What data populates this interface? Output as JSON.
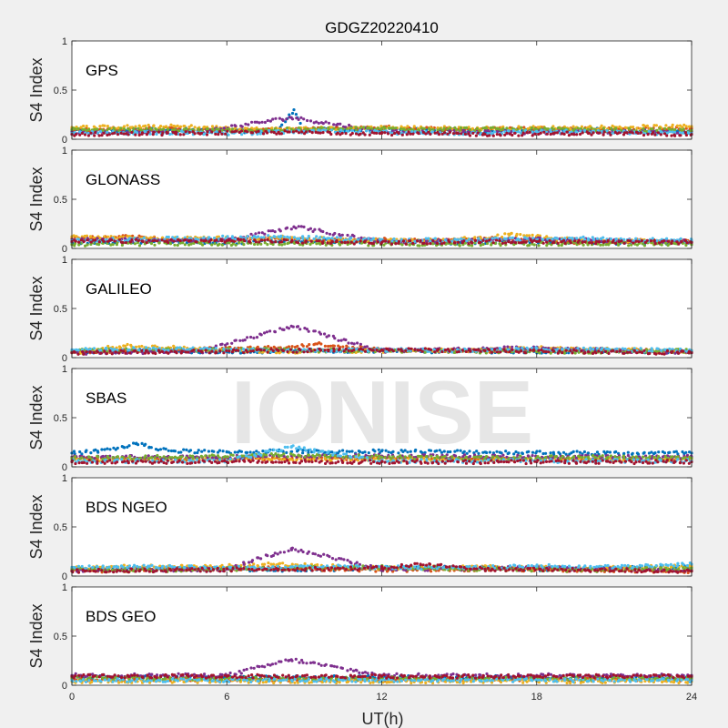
{
  "chart_data": {
    "type": "scatter",
    "title": "GDGZ20220410",
    "xlabel": "UT(h)",
    "ylabel": "S4 Index",
    "xlim": [
      0,
      24
    ],
    "ylim": [
      0,
      1
    ],
    "xticks": [
      "0",
      "6",
      "12",
      "18",
      "24"
    ],
    "yticks": [
      "0",
      "0.5",
      "1"
    ],
    "grid": false,
    "watermark": "IONISE",
    "colors": [
      "#0072bd",
      "#d95319",
      "#edb120",
      "#7e2f8e",
      "#77ac30",
      "#4dbeee",
      "#a2142f"
    ],
    "panels": [
      {
        "name": "GPS",
        "series": [
          {
            "x": [
              0,
              2,
              4,
              6,
              8,
              8.6,
              9,
              12,
              14,
              16,
              18,
              20,
              22,
              24
            ],
            "y": [
              0.08,
              0.09,
              0.1,
              0.08,
              0.09,
              0.3,
              0.1,
              0.09,
              0.1,
              0.08,
              0.09,
              0.1,
              0.08,
              0.08
            ]
          },
          {
            "x": [
              0,
              3,
              6,
              9,
              12,
              15,
              18,
              21,
              24
            ],
            "y": [
              0.1,
              0.11,
              0.09,
              0.1,
              0.12,
              0.1,
              0.11,
              0.1,
              0.11
            ]
          },
          {
            "x": [
              0,
              4,
              8,
              12,
              16,
              20,
              24
            ],
            "y": [
              0.12,
              0.13,
              0.1,
              0.12,
              0.11,
              0.12,
              0.13
            ]
          },
          {
            "x": [
              0,
              5,
              8.5,
              12,
              17,
              24
            ],
            "y": [
              0.07,
              0.08,
              0.22,
              0.08,
              0.07,
              0.08
            ]
          },
          {
            "x": [
              0,
              6,
              12,
              18,
              24
            ],
            "y": [
              0.1,
              0.09,
              0.11,
              0.1,
              0.09
            ]
          },
          {
            "x": [
              0,
              3,
              6,
              9,
              12,
              15,
              18,
              21,
              24
            ],
            "y": [
              0.06,
              0.07,
              0.06,
              0.08,
              0.07,
              0.06,
              0.08,
              0.07,
              0.06
            ]
          },
          {
            "x": [
              0,
              4,
              8,
              12,
              16,
              20,
              24
            ],
            "y": [
              0.05,
              0.06,
              0.07,
              0.06,
              0.05,
              0.06,
              0.05
            ]
          }
        ]
      },
      {
        "name": "GLONASS",
        "series": [
          {
            "x": [
              0,
              3,
              6,
              9,
              12,
              15,
              18,
              21,
              24
            ],
            "y": [
              0.06,
              0.07,
              0.06,
              0.08,
              0.07,
              0.06,
              0.07,
              0.06,
              0.06
            ]
          },
          {
            "x": [
              0,
              2,
              4,
              6,
              8,
              10,
              12,
              14,
              16,
              18,
              20,
              22,
              24
            ],
            "y": [
              0.1,
              0.12,
              0.09,
              0.08,
              0.1,
              0.08,
              0.09,
              0.08,
              0.1,
              0.09,
              0.06,
              0.08,
              0.07
            ]
          },
          {
            "x": [
              0,
              4,
              8,
              12,
              16,
              17,
              20,
              24
            ],
            "y": [
              0.12,
              0.1,
              0.11,
              0.08,
              0.1,
              0.15,
              0.08,
              0.07
            ]
          },
          {
            "x": [
              0,
              6,
              8.6,
              12,
              18,
              24
            ],
            "y": [
              0.09,
              0.08,
              0.22,
              0.07,
              0.09,
              0.07
            ]
          },
          {
            "x": [
              0,
              5,
              10,
              15,
              20,
              24
            ],
            "y": [
              0.04,
              0.05,
              0.05,
              0.04,
              0.05,
              0.04
            ]
          },
          {
            "x": [
              0,
              4,
              8,
              12,
              16,
              20,
              24
            ],
            "y": [
              0.08,
              0.1,
              0.12,
              0.08,
              0.09,
              0.1,
              0.08
            ]
          },
          {
            "x": [
              0,
              6,
              12,
              18,
              24
            ],
            "y": [
              0.07,
              0.08,
              0.06,
              0.07,
              0.06
            ]
          }
        ]
      },
      {
        "name": "GALILEO",
        "series": [
          {
            "x": [
              0,
              3,
              6,
              9,
              12,
              15,
              18,
              21,
              24
            ],
            "y": [
              0.06,
              0.07,
              0.06,
              0.07,
              0.07,
              0.06,
              0.06,
              0.07,
              0.06
            ]
          },
          {
            "x": [
              0,
              4,
              8,
              9.5,
              12,
              16,
              20,
              24
            ],
            "y": [
              0.06,
              0.08,
              0.1,
              0.14,
              0.08,
              0.07,
              0.08,
              0.06
            ]
          },
          {
            "x": [
              0,
              2,
              4,
              6,
              8,
              12,
              16,
              18,
              24
            ],
            "y": [
              0.05,
              0.12,
              0.1,
              0.08,
              0.06,
              0.07,
              0.08,
              0.1,
              0.06
            ]
          },
          {
            "x": [
              0,
              5,
              8.5,
              12,
              18,
              24
            ],
            "y": [
              0.05,
              0.06,
              0.32,
              0.07,
              0.1,
              0.05
            ]
          },
          {
            "x": [
              0,
              6,
              12,
              18,
              24
            ],
            "y": [
              0.07,
              0.08,
              0.07,
              0.06,
              0.07
            ]
          },
          {
            "x": [
              0,
              3,
              6,
              9,
              12,
              15,
              18,
              21,
              24
            ],
            "y": [
              0.08,
              0.09,
              0.08,
              0.07,
              0.08,
              0.07,
              0.09,
              0.08,
              0.07
            ]
          },
          {
            "x": [
              0,
              4,
              8,
              12,
              16,
              20,
              24
            ],
            "y": [
              0.05,
              0.06,
              0.07,
              0.08,
              0.07,
              0.06,
              0.05
            ]
          }
        ]
      },
      {
        "name": "SBAS",
        "series": [
          {
            "x": [
              0,
              1,
              2,
              2.5,
              3,
              4,
              6,
              8,
              10,
              12,
              16,
              20,
              24
            ],
            "y": [
              0.14,
              0.16,
              0.2,
              0.24,
              0.2,
              0.16,
              0.15,
              0.16,
              0.15,
              0.16,
              0.15,
              0.14,
              0.14
            ]
          },
          {
            "x": [
              0,
              6,
              12,
              18,
              24
            ],
            "y": [
              0.08,
              0.08,
              0.09,
              0.08,
              0.08
            ]
          },
          {
            "x": [
              0,
              6,
              12,
              18,
              24
            ],
            "y": [
              0.07,
              0.08,
              0.07,
              0.08,
              0.07
            ]
          },
          {
            "x": [
              0,
              6,
              12,
              18,
              24
            ],
            "y": [
              0.1,
              0.1,
              0.11,
              0.1,
              0.1
            ]
          },
          {
            "x": [
              0,
              4,
              8,
              12,
              16,
              20,
              24
            ],
            "y": [
              0.09,
              0.1,
              0.12,
              0.1,
              0.09,
              0.1,
              0.09
            ]
          },
          {
            "x": [
              0,
              6,
              8.5,
              12,
              18,
              24
            ],
            "y": [
              0.06,
              0.06,
              0.2,
              0.06,
              0.06,
              0.06
            ]
          },
          {
            "x": [
              0,
              6,
              12,
              18,
              24
            ],
            "y": [
              0.05,
              0.05,
              0.05,
              0.05,
              0.05
            ]
          }
        ]
      },
      {
        "name": "BDS NGEO",
        "series": [
          {
            "x": [
              0,
              3,
              6,
              9,
              12,
              15,
              18,
              21,
              24
            ],
            "y": [
              0.06,
              0.08,
              0.07,
              0.06,
              0.08,
              0.09,
              0.07,
              0.08,
              0.09
            ]
          },
          {
            "x": [
              0,
              4,
              8,
              12,
              16,
              20,
              24
            ],
            "y": [
              0.05,
              0.07,
              0.08,
              0.06,
              0.07,
              0.06,
              0.05
            ]
          },
          {
            "x": [
              0,
              2,
              5,
              8,
              12,
              16,
              20,
              24
            ],
            "y": [
              0.08,
              0.1,
              0.09,
              0.12,
              0.08,
              0.09,
              0.08,
              0.1
            ]
          },
          {
            "x": [
              0,
              6,
              8.5,
              12,
              18,
              24
            ],
            "y": [
              0.06,
              0.07,
              0.28,
              0.07,
              0.08,
              0.06
            ]
          },
          {
            "x": [
              0,
              4,
              8,
              12,
              16,
              20,
              24
            ],
            "y": [
              0.07,
              0.06,
              0.08,
              0.09,
              0.07,
              0.06,
              0.08
            ]
          },
          {
            "x": [
              0,
              3,
              6,
              9,
              12,
              15,
              18,
              21,
              24
            ],
            "y": [
              0.09,
              0.1,
              0.08,
              0.1,
              0.09,
              0.08,
              0.1,
              0.09,
              0.12
            ]
          },
          {
            "x": [
              0,
              4,
              8,
              12,
              13.5,
              16,
              20,
              24
            ],
            "y": [
              0.05,
              0.06,
              0.07,
              0.08,
              0.12,
              0.07,
              0.06,
              0.05
            ]
          }
        ]
      },
      {
        "name": "BDS GEO",
        "series": [
          {
            "x": [
              0,
              6,
              12,
              18,
              24
            ],
            "y": [
              0.08,
              0.08,
              0.08,
              0.08,
              0.08
            ]
          },
          {
            "x": [
              0,
              6,
              12,
              18,
              24
            ],
            "y": [
              0.06,
              0.06,
              0.06,
              0.06,
              0.06
            ]
          },
          {
            "x": [
              0,
              6,
              12,
              18,
              24
            ],
            "y": [
              0.04,
              0.04,
              0.04,
              0.04,
              0.04
            ]
          },
          {
            "x": [
              0,
              6,
              8.5,
              12,
              18,
              24
            ],
            "y": [
              0.1,
              0.1,
              0.26,
              0.1,
              0.1,
              0.1
            ]
          },
          {
            "x": [
              0,
              6,
              12,
              18,
              24
            ],
            "y": [
              0.07,
              0.07,
              0.07,
              0.07,
              0.07
            ]
          },
          {
            "x": [
              0,
              6,
              12,
              18,
              24
            ],
            "y": [
              0.05,
              0.05,
              0.05,
              0.05,
              0.05
            ]
          },
          {
            "x": [
              0,
              6,
              12,
              18,
              24
            ],
            "y": [
              0.09,
              0.09,
              0.09,
              0.09,
              0.09
            ]
          }
        ]
      }
    ]
  }
}
